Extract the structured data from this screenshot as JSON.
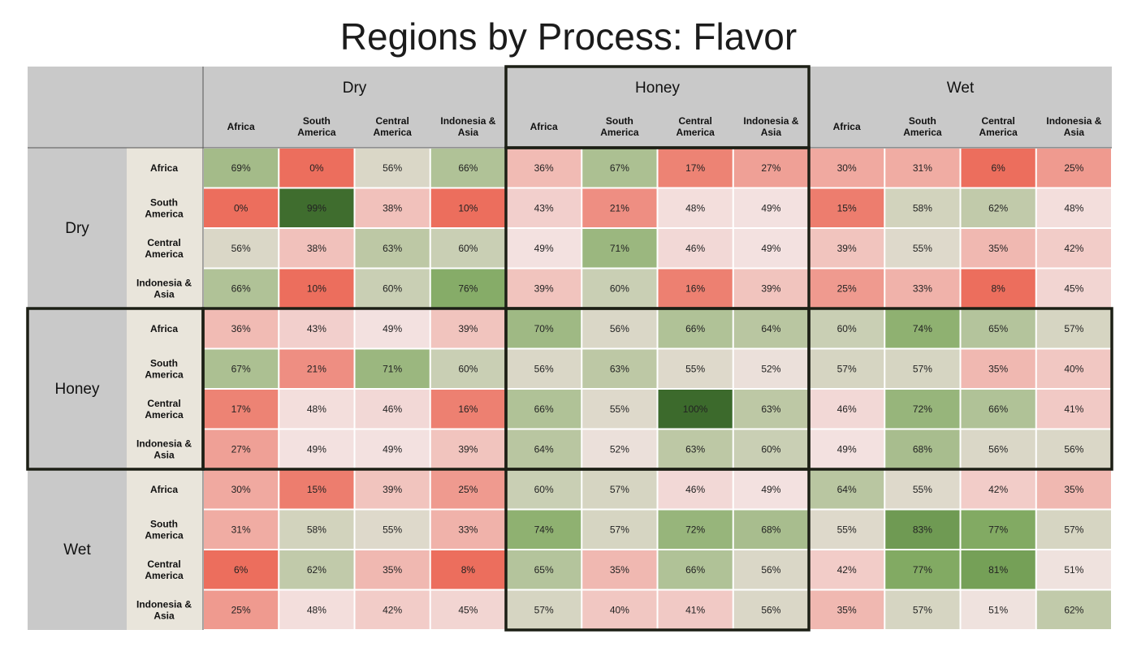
{
  "chart_data": {
    "type": "heatmap",
    "title": "Regions by Process: Flavor",
    "processes": [
      "Dry",
      "Honey",
      "Wet"
    ],
    "regions": [
      [
        "Africa"
      ],
      [
        "South",
        "America"
      ],
      [
        "Central",
        "America"
      ],
      [
        "Indonesia &",
        "Asia"
      ]
    ],
    "value_format": "percent",
    "color_scale": {
      "low": "#ec6e5d",
      "mid": "#f3e4e3",
      "high": "#7ea85e",
      "max": "#3c6a2c"
    },
    "highlighted_blocks": [
      {
        "row_process": "Honey",
        "col_process": "Dry"
      },
      {
        "row_process": "Dry",
        "col_process": "Honey"
      },
      {
        "row_process": "Honey",
        "col_process": "Honey"
      },
      {
        "row_process": "Wet",
        "col_process": "Honey"
      },
      {
        "row_process": "Honey",
        "col_process": "Wet"
      }
    ],
    "values": [
      [
        69,
        0,
        56,
        66,
        36,
        67,
        17,
        27,
        30,
        31,
        6,
        25
      ],
      [
        0,
        99,
        38,
        10,
        43,
        21,
        48,
        49,
        15,
        58,
        62,
        48
      ],
      [
        56,
        38,
        63,
        60,
        49,
        71,
        46,
        49,
        39,
        55,
        35,
        42
      ],
      [
        66,
        10,
        60,
        76,
        39,
        60,
        16,
        39,
        25,
        33,
        8,
        45
      ],
      [
        36,
        43,
        49,
        39,
        70,
        56,
        66,
        64,
        60,
        74,
        65,
        57
      ],
      [
        67,
        21,
        71,
        60,
        56,
        63,
        55,
        52,
        57,
        57,
        35,
        40
      ],
      [
        17,
        48,
        46,
        16,
        66,
        55,
        100,
        63,
        46,
        72,
        66,
        41
      ],
      [
        27,
        49,
        49,
        39,
        64,
        52,
        63,
        60,
        49,
        68,
        56,
        56
      ],
      [
        30,
        15,
        39,
        25,
        60,
        57,
        46,
        49,
        64,
        55,
        42,
        35
      ],
      [
        31,
        58,
        55,
        33,
        74,
        57,
        72,
        68,
        55,
        83,
        77,
        57
      ],
      [
        6,
        62,
        35,
        8,
        65,
        35,
        66,
        56,
        42,
        77,
        81,
        51
      ],
      [
        25,
        48,
        42,
        45,
        57,
        40,
        41,
        56,
        35,
        57,
        51,
        62
      ]
    ]
  }
}
